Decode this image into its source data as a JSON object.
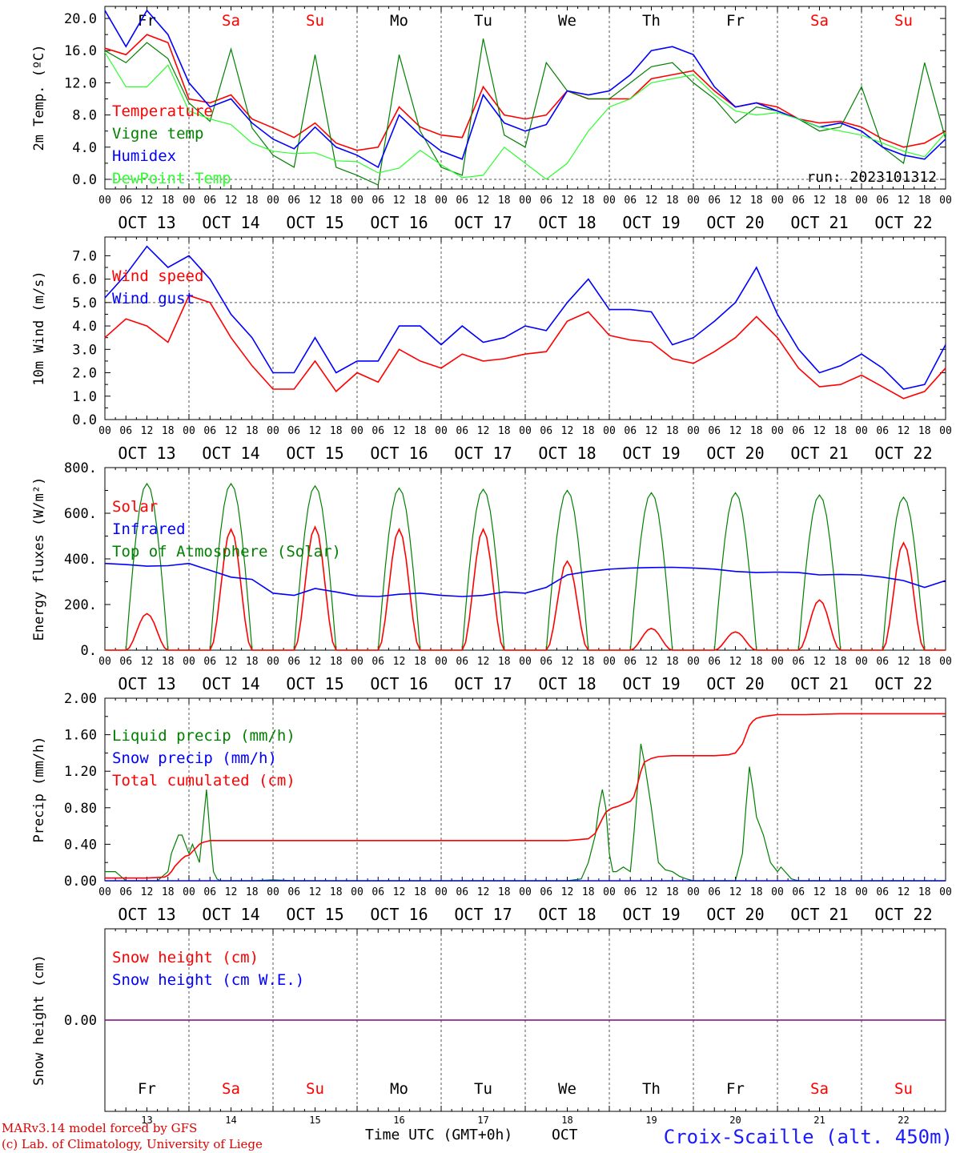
{
  "days": {
    "names": [
      "Fr",
      "Sa",
      "Su",
      "Mo",
      "Tu",
      "We",
      "Th",
      "Fr",
      "Sa",
      "Su"
    ],
    "weekend": [
      false,
      true,
      true,
      false,
      false,
      false,
      false,
      false,
      true,
      true
    ],
    "dates": [
      "OCT 13",
      "OCT 14",
      "OCT 15",
      "OCT 16",
      "OCT 17",
      "OCT 18",
      "OCT 19",
      "OCT 20",
      "OCT 21",
      "OCT 22"
    ],
    "numbers": [
      "13",
      "14",
      "15",
      "16",
      "17",
      "18",
      "19",
      "20",
      "21",
      "22"
    ],
    "hour_labels": [
      "00",
      "06",
      "12",
      "18"
    ],
    "end_hour_label": "00"
  },
  "colors": {
    "red": "#ff0000",
    "green": "#008000",
    "blue": "#0000ff",
    "lightgreen": "#2bff2b",
    "purple": "#800080",
    "weekend_text": "#ff0000"
  },
  "run_label": "run: 2023101312",
  "footer": {
    "model_line": "MARv3.14 model forced by GFS",
    "credit_line": "(c) Lab. of Climatology, University of Liege",
    "time_label": "Time UTC (GMT+0h)",
    "month_label": "OCT",
    "station": "Croix-Scaille (alt. 450m)"
  },
  "chart_data": [
    {
      "type": "line",
      "ylabel": "2m Temp. (ºC)",
      "ylim": [
        -1.2,
        21.5
      ],
      "yticks": [
        "0.0",
        "4.0",
        "8.0",
        "12.0",
        "16.0",
        "20.0"
      ],
      "ytick_values": [
        0,
        4,
        8,
        12,
        16,
        20
      ],
      "hline": 0,
      "show_day_names": true,
      "legend": [
        "Temperature",
        "Vigne temp",
        "Humidex",
        "DewPoint Temp"
      ],
      "x_hours": [
        0,
        6,
        12,
        18,
        24,
        30,
        36,
        42,
        48,
        54,
        60,
        66,
        72,
        78,
        84,
        90,
        96,
        102,
        108,
        114,
        120,
        126,
        132,
        138,
        144,
        150,
        156,
        162,
        168,
        174,
        180,
        186,
        192,
        198,
        204,
        210,
        216,
        222,
        228,
        234,
        240
      ],
      "series": [
        {
          "name": "Temperature",
          "color": "red",
          "values": [
            16.3,
            15.5,
            18,
            17,
            10,
            9.5,
            10.5,
            7.5,
            6.4,
            5.2,
            7,
            4.5,
            3.6,
            4,
            9,
            6.5,
            5.5,
            5.2,
            11.5,
            8,
            7.5,
            8,
            11,
            10,
            10,
            10,
            12.5,
            13,
            13.5,
            11,
            9,
            9.5,
            9,
            7.5,
            7,
            7.2,
            6.5,
            5,
            4,
            4.5,
            6
          ]
        },
        {
          "name": "Vigne temp",
          "color": "green",
          "values": [
            16,
            14.5,
            17,
            15,
            9.5,
            7.2,
            16.2,
            6.4,
            3,
            1.5,
            15.5,
            1.5,
            0.5,
            -0.7,
            15.5,
            6,
            1.5,
            0.5,
            17.5,
            5.5,
            4,
            14.5,
            11,
            10,
            10,
            12,
            14,
            14.5,
            12,
            10,
            7,
            9,
            8.5,
            7.5,
            6,
            6.5,
            11.5,
            4,
            2,
            14.5,
            5
          ]
        },
        {
          "name": "Humidex",
          "color": "blue",
          "values": [
            21,
            16.5,
            21,
            18,
            12,
            9,
            10,
            7,
            5,
            3.8,
            6.5,
            4,
            3,
            1.5,
            8,
            5.5,
            3.5,
            2.5,
            10.5,
            7,
            6,
            6.8,
            11,
            10.5,
            11,
            13,
            16,
            16.5,
            15.5,
            11.5,
            9,
            9.5,
            8.5,
            7.5,
            6.5,
            7,
            6,
            4,
            3,
            2.5,
            5
          ]
        },
        {
          "name": "DewPoint Temp",
          "color": "lightgreen",
          "values": [
            15.8,
            11.5,
            11.5,
            14.2,
            8.5,
            7.5,
            6.8,
            4.5,
            3.5,
            3.2,
            3.3,
            2.3,
            2.2,
            0.8,
            1.4,
            3.6,
            1.8,
            0.2,
            0.5,
            4,
            2,
            0,
            2,
            6,
            9,
            10,
            12,
            12.5,
            13,
            10.5,
            8.5,
            8,
            8.3,
            7.5,
            6.5,
            6,
            5.5,
            4.5,
            3.5,
            2.8,
            5.8
          ]
        }
      ]
    },
    {
      "type": "line",
      "ylabel": "10m Wind (m/s)",
      "ylim": [
        0,
        7.8
      ],
      "yticks": [
        "0.0",
        "1.0",
        "2.0",
        "3.0",
        "4.0",
        "5.0",
        "6.0",
        "7.0"
      ],
      "ytick_values": [
        0,
        1,
        2,
        3,
        4,
        5,
        6,
        7
      ],
      "hline": 5,
      "show_day_names": false,
      "legend": [
        "Wind speed",
        "Wind gust"
      ],
      "x_hours": [
        0,
        6,
        12,
        18,
        24,
        30,
        36,
        42,
        48,
        54,
        60,
        66,
        72,
        78,
        84,
        90,
        96,
        102,
        108,
        114,
        120,
        126,
        132,
        138,
        144,
        150,
        156,
        162,
        168,
        174,
        180,
        186,
        192,
        198,
        204,
        210,
        216,
        222,
        228,
        234,
        240
      ],
      "series": [
        {
          "name": "Wind speed",
          "color": "red",
          "values": [
            3.5,
            4.3,
            4,
            3.3,
            5.3,
            5,
            3.5,
            2.3,
            1.3,
            1.3,
            2.5,
            1.2,
            2,
            1.6,
            3,
            2.5,
            2.2,
            2.8,
            2.5,
            2.6,
            2.8,
            2.9,
            4.2,
            4.6,
            3.6,
            3.4,
            3.3,
            2.6,
            2.4,
            2.9,
            3.5,
            4.4,
            3.5,
            2.2,
            1.4,
            1.5,
            1.9,
            1.4,
            0.9,
            1.2,
            2.2
          ]
        },
        {
          "name": "Wind gust",
          "color": "blue",
          "values": [
            5.2,
            6.2,
            7.4,
            6.5,
            7,
            6,
            4.5,
            3.5,
            2,
            2,
            3.5,
            2,
            2.5,
            2.5,
            4,
            4,
            3.2,
            4,
            3.3,
            3.5,
            4,
            3.8,
            5,
            6,
            4.7,
            4.7,
            4.6,
            3.2,
            3.5,
            4.2,
            5,
            6.5,
            4.5,
            3,
            2,
            2.3,
            2.8,
            2.2,
            1.3,
            1.5,
            3.2
          ]
        }
      ]
    },
    {
      "type": "line",
      "ylabel": "Energy fluxes (W/m²)",
      "ylim": [
        0,
        800
      ],
      "yticks": [
        "0.",
        "200.",
        "400.",
        "600.",
        "800."
      ],
      "ytick_values": [
        0,
        200,
        400,
        600,
        800
      ],
      "show_day_names": false,
      "legend": [
        "Solar",
        "Infrared",
        "Top of Atmosphere (Solar)"
      ],
      "toa_peaks": [
        730,
        730,
        720,
        710,
        705,
        700,
        690,
        690,
        680,
        670
      ],
      "solar_peaks": [
        160,
        530,
        540,
        530,
        530,
        390,
        95,
        80,
        220,
        470
      ],
      "series": [
        {
          "name": "Infrared",
          "color": "blue",
          "x_hours": [
            0,
            6,
            12,
            18,
            24,
            30,
            36,
            42,
            48,
            54,
            60,
            66,
            72,
            78,
            84,
            90,
            96,
            102,
            108,
            114,
            120,
            126,
            132,
            138,
            144,
            150,
            156,
            162,
            168,
            174,
            180,
            186,
            192,
            198,
            204,
            210,
            216,
            222,
            228,
            234,
            240
          ],
          "values": [
            380,
            375,
            368,
            370,
            380,
            350,
            320,
            310,
            250,
            240,
            270,
            255,
            238,
            235,
            245,
            250,
            240,
            235,
            240,
            255,
            250,
            275,
            330,
            345,
            355,
            360,
            362,
            363,
            360,
            355,
            345,
            340,
            342,
            340,
            330,
            332,
            330,
            320,
            305,
            275,
            305
          ]
        }
      ]
    },
    {
      "type": "line",
      "ylabel": "Precip (mm/h)",
      "ylim": [
        0,
        2
      ],
      "yticks": [
        "0.00",
        "0.40",
        "0.80",
        "1.20",
        "1.60",
        "2.00"
      ],
      "ytick_values": [
        0,
        0.4,
        0.8,
        1.2,
        1.6,
        2.0
      ],
      "show_day_names": false,
      "legend": [
        "Liquid precip (mm/h)",
        "Snow precip (mm/h)",
        "Total cumulated (cm)"
      ],
      "series": [
        {
          "name": "Liquid precip (mm/h)",
          "color": "green",
          "x_hours": [
            0,
            3,
            6,
            9,
            12,
            15,
            18,
            19,
            20,
            21,
            22,
            23,
            24,
            25,
            26,
            27,
            28,
            29,
            30,
            31,
            32,
            33,
            36,
            42,
            48,
            54,
            60,
            66,
            72,
            96,
            120,
            132,
            136,
            138,
            140,
            141,
            142,
            143,
            144,
            145,
            146,
            148,
            150,
            151,
            152,
            153,
            154,
            156,
            158,
            160,
            162,
            164,
            166,
            168,
            180,
            182,
            183,
            184,
            185,
            186,
            188,
            190,
            192,
            193,
            196,
            198,
            210,
            240
          ],
          "values": [
            0.1,
            0.1,
            0,
            0,
            0,
            0,
            0.1,
            0.3,
            0.4,
            0.5,
            0.5,
            0.4,
            0.3,
            0.4,
            0.3,
            0.2,
            0.6,
            1,
            0.5,
            0.1,
            0.02,
            0,
            0,
            0,
            0.01,
            0,
            0,
            0,
            0,
            0,
            0,
            0,
            0.02,
            0.2,
            0.5,
            0.8,
            1,
            0.8,
            0.3,
            0.1,
            0.1,
            0.15,
            0.1,
            0.5,
            1,
            1.5,
            1.3,
            0.8,
            0.2,
            0.12,
            0.1,
            0.05,
            0.02,
            0,
            0,
            0.3,
            0.8,
            1.25,
            1,
            0.7,
            0.5,
            0.2,
            0.1,
            0.15,
            0.02,
            0,
            0,
            0
          ]
        },
        {
          "name": "Snow precip (mm/h)",
          "color": "blue",
          "x_hours": [
            0,
            240
          ],
          "values": [
            0,
            0
          ]
        },
        {
          "name": "Total cumulated (cm)",
          "color": "red",
          "x_hours": [
            0,
            6,
            12,
            17,
            18,
            19,
            20,
            21,
            22,
            23,
            24,
            25,
            26,
            27,
            28,
            29,
            30,
            36,
            60,
            96,
            132,
            138,
            140,
            141,
            142,
            143,
            144,
            145,
            146,
            148,
            150,
            151,
            152,
            153,
            154,
            156,
            158,
            162,
            168,
            174,
            178,
            180,
            182,
            183,
            184,
            185,
            186,
            188,
            190,
            192,
            200,
            210,
            240
          ],
          "values": [
            0.03,
            0.03,
            0.03,
            0.04,
            0.06,
            0.1,
            0.16,
            0.2,
            0.24,
            0.27,
            0.28,
            0.32,
            0.36,
            0.4,
            0.42,
            0.43,
            0.44,
            0.44,
            0.44,
            0.44,
            0.44,
            0.46,
            0.52,
            0.6,
            0.68,
            0.75,
            0.78,
            0.8,
            0.81,
            0.84,
            0.87,
            0.92,
            1.05,
            1.2,
            1.3,
            1.34,
            1.36,
            1.37,
            1.37,
            1.37,
            1.38,
            1.4,
            1.5,
            1.6,
            1.7,
            1.75,
            1.78,
            1.8,
            1.81,
            1.82,
            1.82,
            1.83,
            1.83
          ]
        }
      ]
    },
    {
      "type": "line",
      "ylabel": "Snow height (cm)",
      "ylim": [
        -1,
        1
      ],
      "yticks": [
        "0.00"
      ],
      "ytick_values": [
        0
      ],
      "show_day_names": true,
      "legend": [
        "Snow height (cm)",
        "Snow height (cm W.E.)"
      ],
      "series": [
        {
          "name": "Snow height (cm)",
          "color": "red",
          "x_hours": [
            0,
            240
          ],
          "values": [
            0,
            0
          ]
        },
        {
          "name": "Snow height (cm W.E.)",
          "color": "blue",
          "x_hours": [
            0,
            240
          ],
          "values": [
            0,
            0
          ]
        }
      ]
    }
  ]
}
